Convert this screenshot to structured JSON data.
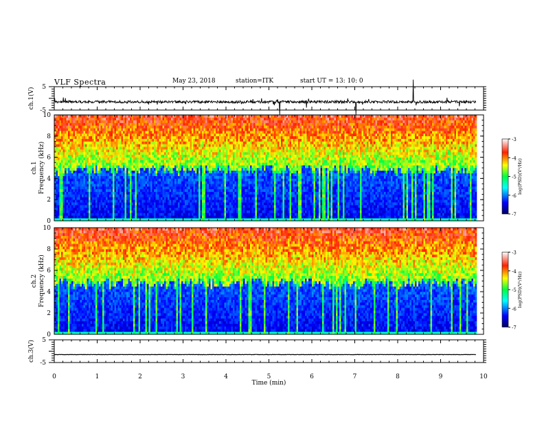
{
  "header": {
    "title": "VLF Spectra",
    "date": "May 23, 2018",
    "station": "station=ITK",
    "start_ut": "start  UT  =  13: 10: 0"
  },
  "chart_data": [
    {
      "type": "line",
      "name": "ch1-waveform",
      "ylabel": "ch.1(V)",
      "ylim": [
        -5,
        5
      ],
      "ytick_labels": [
        "5",
        "-5"
      ],
      "x_range": [
        0,
        9.83
      ],
      "baseline": -1.5,
      "description_values": "noisy waveform with impulsive spikes"
    },
    {
      "type": "heatmap",
      "name": "ch1-spectrogram",
      "ylabel_line1": "ch.1",
      "ylabel_line2": "Frequency (kHz)",
      "ylim": [
        0,
        10
      ],
      "yticks": [
        "0",
        "2",
        "4",
        "6",
        "8",
        "10"
      ],
      "x_range": [
        0,
        9.83
      ],
      "noise_floor_khz": 4.8,
      "colorbar": {
        "label": "log(PSD)(V²/Hz)",
        "range": [
          -7,
          -3
        ],
        "ticks": [
          "-3",
          "-4",
          "-5",
          "-6",
          "-7"
        ]
      }
    },
    {
      "type": "heatmap",
      "name": "ch2-spectrogram",
      "ylabel_line1": "ch.2",
      "ylabel_line2": "Frequency (kHz)",
      "ylim": [
        0,
        10
      ],
      "yticks": [
        "0",
        "2",
        "4",
        "6",
        "8",
        "10"
      ],
      "x_range": [
        0,
        9.83
      ],
      "noise_floor_khz": 4.8,
      "colorbar": {
        "label": "log(PSD)(V²/Hz)",
        "range": [
          -7,
          -3
        ],
        "ticks": [
          "-3",
          "-4",
          "-5",
          "-6",
          "-7"
        ]
      }
    },
    {
      "type": "line",
      "name": "ch3-waveform",
      "ylabel": "ch.3(V)",
      "ylim": [
        -5,
        5
      ],
      "ytick_labels": [
        "5",
        "-5"
      ],
      "x_range": [
        0,
        9.83
      ],
      "constant_value": -1.5
    }
  ],
  "xaxis": {
    "label": "Time (min)",
    "ticks": [
      "0",
      "1",
      "2",
      "3",
      "4",
      "5",
      "6",
      "7",
      "8",
      "9",
      "10"
    ],
    "range": [
      0,
      10
    ]
  },
  "colors": {
    "jet_low": "#000080",
    "jet_mid": "#00ff80",
    "jet_high": "#c00000",
    "trace": "#000000"
  }
}
